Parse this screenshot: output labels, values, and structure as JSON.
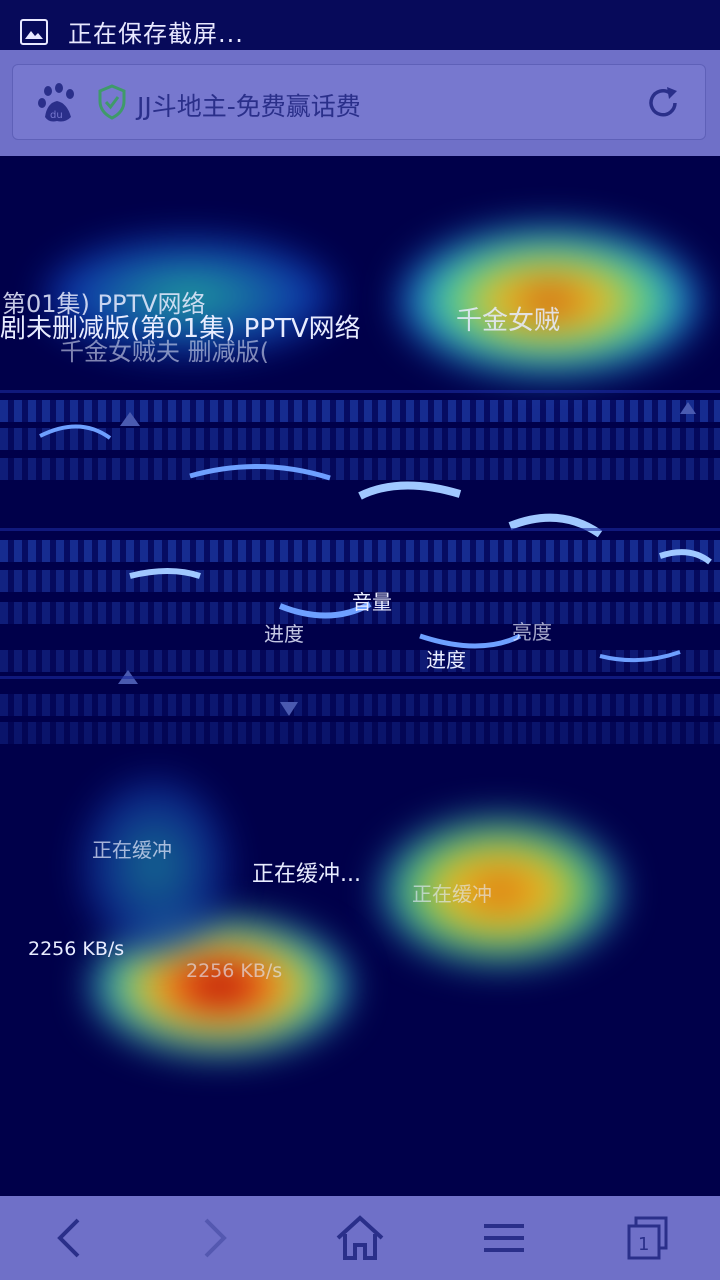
{
  "status_bar": {
    "notification_text": "正在保存截屏..."
  },
  "address_bar": {
    "page_title": "JJ斗地主-免费赢话费",
    "site_icon": "baidu-paw-icon",
    "security_icon": "shield-check-icon",
    "refresh_icon": "refresh-icon"
  },
  "video": {
    "title_line_1": "剧未删减版(第01集) PPTV网络",
    "title_line_2": "千金女贼夫 删减版(",
    "title_fragment_top": "第01集) PPTV网络",
    "title_fragment_right": "千金女贼",
    "volume_label": "音量",
    "progress_label": "进度",
    "progress_label_2": "进度",
    "brightness_label": "亮度",
    "loading_text": "正在缓冲...",
    "loading_text_2": "正在缓冲",
    "speed_text": "2256 KB/s",
    "speed_text_2": "2256 KB/s"
  },
  "bottom_nav": {
    "back_icon": "chevron-left-icon",
    "forward_icon": "chevron-right-icon",
    "home_icon": "home-icon",
    "menu_icon": "menu-icon",
    "tabs_icon": "tabs-icon",
    "tab_count": "1"
  },
  "colors": {
    "status_bar": "#070a5a",
    "toolbar": "#6f70c8",
    "video_bg": "#00004a",
    "url_text": "#2a2f8a"
  }
}
